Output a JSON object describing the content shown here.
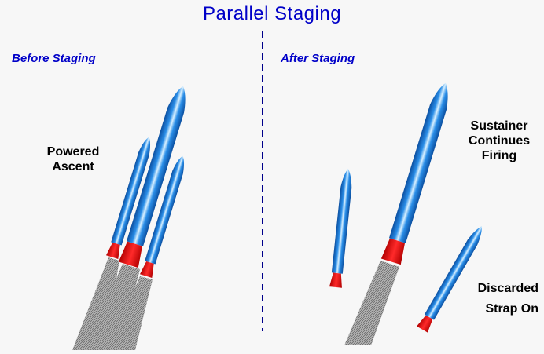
{
  "title": "Parallel Staging",
  "sections": {
    "before": "Before Staging",
    "after": "After Staging"
  },
  "labels": {
    "powered_ascent": [
      "Powered",
      "Ascent"
    ],
    "sustainer": [
      "Sustainer",
      "Continues",
      "Firing"
    ],
    "discarded": [
      "Discarded",
      "Strap On"
    ]
  },
  "colors": {
    "title": "#0000c8",
    "rocket_body": "#1a78d2",
    "nozzle": "#dd0000",
    "exhaust": "#8c8c8c",
    "divider": "#00008b",
    "background": "#f7f7f7"
  }
}
